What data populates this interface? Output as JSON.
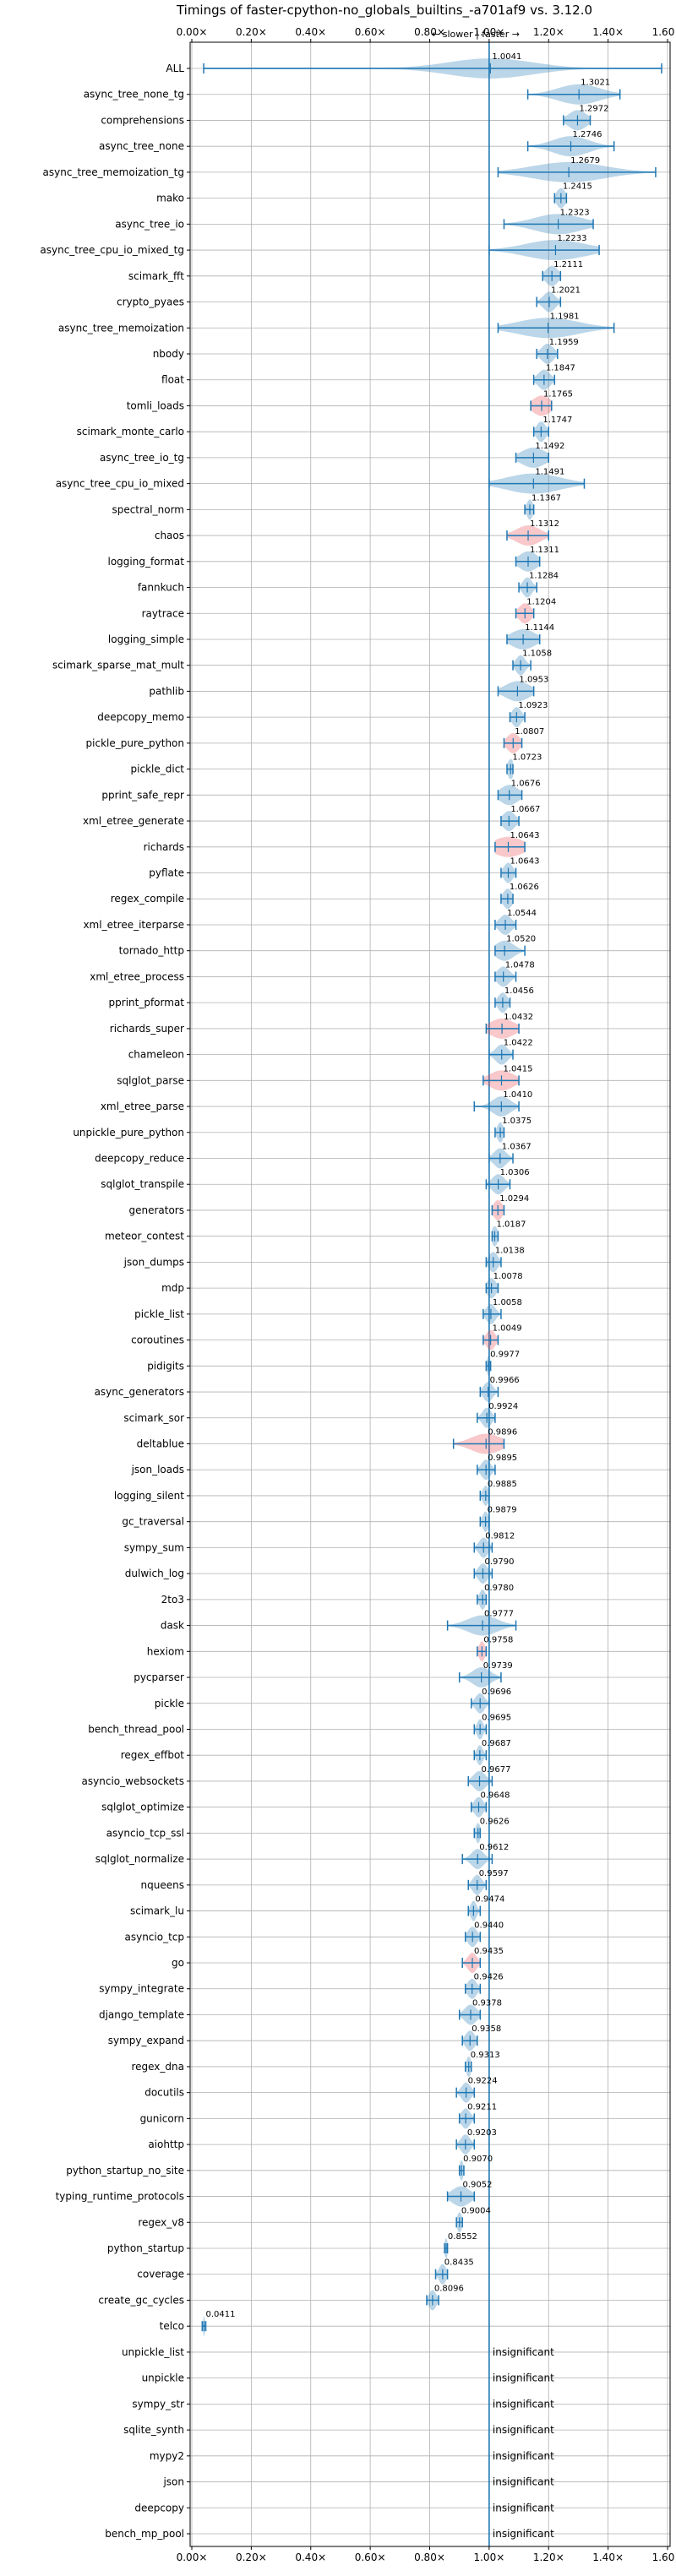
{
  "chart_data": {
    "type": "violin",
    "title": "Timings of faster-cpython-no_globals_builtins_-a701af9 vs. 3.12.0",
    "subtitle": "← slower | faster →",
    "xlim": [
      0,
      1.6
    ],
    "x_ticks": [
      "0.00×",
      "0.20×",
      "0.40×",
      "0.60×",
      "0.80×",
      "1.00×",
      "1.20×",
      "1.40×",
      "1.60×"
    ],
    "x_tick_values": [
      0,
      0.2,
      0.4,
      0.6,
      0.8,
      1.0,
      1.2,
      1.4,
      1.6
    ],
    "grid": true,
    "reference_line": 1.0,
    "insignificant_label": "insignificant",
    "colors": {
      "normal": "#1f77b4",
      "highlight": "#e8494f"
    },
    "benchmarks": [
      {
        "name": "ALL",
        "value": 1.0041,
        "label": "1.0041",
        "min": 0.04,
        "max": 1.58,
        "spread": 0.14
      },
      {
        "name": "async_tree_none_tg",
        "value": 1.3021,
        "label": "1.3021",
        "min": 1.13,
        "max": 1.44,
        "spread": 0.07
      },
      {
        "name": "comprehensions",
        "value": 1.2972,
        "label": "1.2972",
        "min": 1.25,
        "max": 1.34,
        "spread": 0.03
      },
      {
        "name": "async_tree_none",
        "value": 1.2746,
        "label": "1.2746",
        "min": 1.13,
        "max": 1.42,
        "spread": 0.06
      },
      {
        "name": "async_tree_memoization_tg",
        "value": 1.2679,
        "label": "1.2679",
        "min": 1.03,
        "max": 1.56,
        "spread": 0.12
      },
      {
        "name": "mako",
        "value": 1.2415,
        "label": "1.2415",
        "min": 1.22,
        "max": 1.26,
        "spread": 0.015
      },
      {
        "name": "async_tree_io",
        "value": 1.2323,
        "label": "1.2323",
        "min": 1.05,
        "max": 1.35,
        "spread": 0.08
      },
      {
        "name": "async_tree_cpu_io_mixed_tg",
        "value": 1.2233,
        "label": "1.2233",
        "min": 1.0,
        "max": 1.37,
        "spread": 0.1
      },
      {
        "name": "scimark_fft",
        "value": 1.2111,
        "label": "1.2111",
        "min": 1.18,
        "max": 1.24,
        "spread": 0.02
      },
      {
        "name": "crypto_pyaes",
        "value": 1.2021,
        "label": "1.2021",
        "min": 1.16,
        "max": 1.24,
        "spread": 0.02
      },
      {
        "name": "async_tree_memoization",
        "value": 1.1981,
        "label": "1.1981",
        "min": 1.03,
        "max": 1.42,
        "spread": 0.1
      },
      {
        "name": "nbody",
        "value": 1.1959,
        "label": "1.1959",
        "min": 1.16,
        "max": 1.23,
        "spread": 0.02
      },
      {
        "name": "float",
        "value": 1.1847,
        "label": "1.1847",
        "min": 1.15,
        "max": 1.22,
        "spread": 0.02
      },
      {
        "name": "tomli_loads",
        "value": 1.1765,
        "label": "1.1765",
        "min": 1.14,
        "max": 1.21,
        "spread": 0.03,
        "highlight": true
      },
      {
        "name": "scimark_monte_carlo",
        "value": 1.1747,
        "label": "1.1747",
        "min": 1.15,
        "max": 1.2,
        "spread": 0.015
      },
      {
        "name": "async_tree_io_tg",
        "value": 1.1492,
        "label": "1.1492",
        "min": 1.09,
        "max": 1.2,
        "spread": 0.04
      },
      {
        "name": "async_tree_cpu_io_mixed",
        "value": 1.1491,
        "label": "1.1491",
        "min": 1.0,
        "max": 1.32,
        "spread": 0.09
      },
      {
        "name": "spectral_norm",
        "value": 1.1367,
        "label": "1.1367",
        "min": 1.12,
        "max": 1.15,
        "spread": 0.01
      },
      {
        "name": "chaos",
        "value": 1.1312,
        "label": "1.1312",
        "min": 1.06,
        "max": 1.2,
        "spread": 0.04,
        "highlight": true
      },
      {
        "name": "logging_format",
        "value": 1.1311,
        "label": "1.1311",
        "min": 1.09,
        "max": 1.17,
        "spread": 0.03
      },
      {
        "name": "fannkuch",
        "value": 1.1284,
        "label": "1.1284",
        "min": 1.1,
        "max": 1.16,
        "spread": 0.015
      },
      {
        "name": "raytrace",
        "value": 1.1204,
        "label": "1.1204",
        "min": 1.09,
        "max": 1.15,
        "spread": 0.02,
        "highlight": true
      },
      {
        "name": "logging_simple",
        "value": 1.1144,
        "label": "1.1144",
        "min": 1.06,
        "max": 1.17,
        "spread": 0.04
      },
      {
        "name": "scimark_sparse_mat_mult",
        "value": 1.1058,
        "label": "1.1058",
        "min": 1.08,
        "max": 1.14,
        "spread": 0.015
      },
      {
        "name": "pathlib",
        "value": 1.0953,
        "label": "1.0953",
        "min": 1.03,
        "max": 1.15,
        "spread": 0.04
      },
      {
        "name": "deepcopy_memo",
        "value": 1.0923,
        "label": "1.0923",
        "min": 1.07,
        "max": 1.12,
        "spread": 0.015
      },
      {
        "name": "pickle_pure_python",
        "value": 1.0807,
        "label": "1.0807",
        "min": 1.05,
        "max": 1.11,
        "spread": 0.02,
        "highlight": true
      },
      {
        "name": "pickle_dict",
        "value": 1.0723,
        "label": "1.0723",
        "min": 1.06,
        "max": 1.08,
        "spread": 0.01
      },
      {
        "name": "pprint_safe_repr",
        "value": 1.0676,
        "label": "1.0676",
        "min": 1.03,
        "max": 1.11,
        "spread": 0.03
      },
      {
        "name": "xml_etree_generate",
        "value": 1.0667,
        "label": "1.0667",
        "min": 1.04,
        "max": 1.1,
        "spread": 0.02
      },
      {
        "name": "richards",
        "value": 1.0643,
        "label": "1.0643",
        "min": 1.02,
        "max": 1.12,
        "spread": 0.05,
        "highlight": true
      },
      {
        "name": "pyflate",
        "value": 1.0643,
        "label": "1.0643",
        "min": 1.04,
        "max": 1.09,
        "spread": 0.015
      },
      {
        "name": "regex_compile",
        "value": 1.0626,
        "label": "1.0626",
        "min": 1.04,
        "max": 1.08,
        "spread": 0.015
      },
      {
        "name": "xml_etree_iterparse",
        "value": 1.0544,
        "label": "1.0544",
        "min": 1.02,
        "max": 1.09,
        "spread": 0.02
      },
      {
        "name": "tornado_http",
        "value": 1.052,
        "label": "1.0520",
        "min": 1.02,
        "max": 1.12,
        "spread": 0.03
      },
      {
        "name": "xml_etree_process",
        "value": 1.0478,
        "label": "1.0478",
        "min": 1.02,
        "max": 1.09,
        "spread": 0.02
      },
      {
        "name": "pprint_pformat",
        "value": 1.0456,
        "label": "1.0456",
        "min": 1.02,
        "max": 1.07,
        "spread": 0.015
      },
      {
        "name": "richards_super",
        "value": 1.0432,
        "label": "1.0432",
        "min": 0.99,
        "max": 1.1,
        "spread": 0.04,
        "highlight": true
      },
      {
        "name": "chameleon",
        "value": 1.0422,
        "label": "1.0422",
        "min": 1.0,
        "max": 1.08,
        "spread": 0.02
      },
      {
        "name": "sqlglot_parse",
        "value": 1.0415,
        "label": "1.0415",
        "min": 0.98,
        "max": 1.1,
        "spread": 0.04,
        "highlight": true
      },
      {
        "name": "xml_etree_parse",
        "value": 1.041,
        "label": "1.0410",
        "min": 0.95,
        "max": 1.1,
        "spread": 0.03
      },
      {
        "name": "unpickle_pure_python",
        "value": 1.0375,
        "label": "1.0375",
        "min": 1.02,
        "max": 1.05,
        "spread": 0.01
      },
      {
        "name": "deepcopy_reduce",
        "value": 1.0367,
        "label": "1.0367",
        "min": 1.0,
        "max": 1.08,
        "spread": 0.02
      },
      {
        "name": "sqlglot_transpile",
        "value": 1.0306,
        "label": "1.0306",
        "min": 0.99,
        "max": 1.07,
        "spread": 0.02
      },
      {
        "name": "generators",
        "value": 1.0294,
        "label": "1.0294",
        "min": 1.01,
        "max": 1.05,
        "spread": 0.015,
        "highlight": true
      },
      {
        "name": "meteor_contest",
        "value": 1.0187,
        "label": "1.0187",
        "min": 1.01,
        "max": 1.03,
        "spread": 0.01
      },
      {
        "name": "json_dumps",
        "value": 1.0138,
        "label": "1.0138",
        "min": 0.99,
        "max": 1.04,
        "spread": 0.015
      },
      {
        "name": "mdp",
        "value": 1.0078,
        "label": "1.0078",
        "min": 0.99,
        "max": 1.03,
        "spread": 0.015
      },
      {
        "name": "pickle_list",
        "value": 1.0058,
        "label": "1.0058",
        "min": 0.98,
        "max": 1.04,
        "spread": 0.015
      },
      {
        "name": "coroutines",
        "value": 1.0049,
        "label": "1.0049",
        "min": 0.98,
        "max": 1.03,
        "spread": 0.015,
        "highlight": true
      },
      {
        "name": "pidigits",
        "value": 0.9977,
        "label": "0.9977",
        "min": 0.99,
        "max": 1.005,
        "spread": 0.005
      },
      {
        "name": "async_generators",
        "value": 0.9966,
        "label": "0.9966",
        "min": 0.97,
        "max": 1.03,
        "spread": 0.015
      },
      {
        "name": "scimark_sor",
        "value": 0.9924,
        "label": "0.9924",
        "min": 0.96,
        "max": 1.02,
        "spread": 0.015
      },
      {
        "name": "deltablue",
        "value": 0.9896,
        "label": "0.9896",
        "min": 0.88,
        "max": 1.05,
        "spread": 0.05,
        "highlight": true
      },
      {
        "name": "json_loads",
        "value": 0.9895,
        "label": "0.9895",
        "min": 0.96,
        "max": 1.02,
        "spread": 0.015
      },
      {
        "name": "logging_silent",
        "value": 0.9885,
        "label": "0.9885",
        "min": 0.97,
        "max": 1.0,
        "spread": 0.01
      },
      {
        "name": "gc_traversal",
        "value": 0.9879,
        "label": "0.9879",
        "min": 0.97,
        "max": 1.0,
        "spread": 0.01
      },
      {
        "name": "sympy_sum",
        "value": 0.9812,
        "label": "0.9812",
        "min": 0.95,
        "max": 1.01,
        "spread": 0.015
      },
      {
        "name": "dulwich_log",
        "value": 0.979,
        "label": "0.9790",
        "min": 0.95,
        "max": 1.01,
        "spread": 0.015
      },
      {
        "name": "2to3",
        "value": 0.978,
        "label": "0.9780",
        "min": 0.96,
        "max": 0.99,
        "spread": 0.01
      },
      {
        "name": "dask",
        "value": 0.9777,
        "label": "0.9777",
        "min": 0.86,
        "max": 1.09,
        "spread": 0.05
      },
      {
        "name": "hexiom",
        "value": 0.9758,
        "label": "0.9758",
        "min": 0.96,
        "max": 0.99,
        "spread": 0.01,
        "highlight": true
      },
      {
        "name": "pycparser",
        "value": 0.9739,
        "label": "0.9739",
        "min": 0.9,
        "max": 1.04,
        "spread": 0.03
      },
      {
        "name": "pickle",
        "value": 0.9696,
        "label": "0.9696",
        "min": 0.94,
        "max": 1.0,
        "spread": 0.015
      },
      {
        "name": "bench_thread_pool",
        "value": 0.9695,
        "label": "0.9695",
        "min": 0.95,
        "max": 0.99,
        "spread": 0.01
      },
      {
        "name": "regex_effbot",
        "value": 0.9687,
        "label": "0.9687",
        "min": 0.95,
        "max": 0.99,
        "spread": 0.01
      },
      {
        "name": "asyncio_websockets",
        "value": 0.9677,
        "label": "0.9677",
        "min": 0.93,
        "max": 1.01,
        "spread": 0.02
      },
      {
        "name": "sqlglot_optimize",
        "value": 0.9648,
        "label": "0.9648",
        "min": 0.94,
        "max": 0.99,
        "spread": 0.015
      },
      {
        "name": "asyncio_tcp_ssl",
        "value": 0.9626,
        "label": "0.9626",
        "min": 0.95,
        "max": 0.97,
        "spread": 0.008
      },
      {
        "name": "sqlglot_normalize",
        "value": 0.9612,
        "label": "0.9612",
        "min": 0.91,
        "max": 1.01,
        "spread": 0.02
      },
      {
        "name": "nqueens",
        "value": 0.9597,
        "label": "0.9597",
        "min": 0.93,
        "max": 0.99,
        "spread": 0.015
      },
      {
        "name": "scimark_lu",
        "value": 0.9474,
        "label": "0.9474",
        "min": 0.93,
        "max": 0.97,
        "spread": 0.01
      },
      {
        "name": "asyncio_tcp",
        "value": 0.944,
        "label": "0.9440",
        "min": 0.92,
        "max": 0.97,
        "spread": 0.015
      },
      {
        "name": "go",
        "value": 0.9435,
        "label": "0.9435",
        "min": 0.91,
        "max": 0.97,
        "spread": 0.015,
        "highlight": true
      },
      {
        "name": "sympy_integrate",
        "value": 0.9426,
        "label": "0.9426",
        "min": 0.92,
        "max": 0.97,
        "spread": 0.015
      },
      {
        "name": "django_template",
        "value": 0.9378,
        "label": "0.9378",
        "min": 0.9,
        "max": 0.97,
        "spread": 0.02
      },
      {
        "name": "sympy_expand",
        "value": 0.9358,
        "label": "0.9358",
        "min": 0.91,
        "max": 0.96,
        "spread": 0.015
      },
      {
        "name": "regex_dna",
        "value": 0.9313,
        "label": "0.9313",
        "min": 0.92,
        "max": 0.94,
        "spread": 0.008
      },
      {
        "name": "docutils",
        "value": 0.9224,
        "label": "0.9224",
        "min": 0.89,
        "max": 0.95,
        "spread": 0.015
      },
      {
        "name": "gunicorn",
        "value": 0.9211,
        "label": "0.9211",
        "min": 0.9,
        "max": 0.95,
        "spread": 0.015
      },
      {
        "name": "aiohttp",
        "value": 0.9203,
        "label": "0.9203",
        "min": 0.89,
        "max": 0.95,
        "spread": 0.015
      },
      {
        "name": "python_startup_no_site",
        "value": 0.907,
        "label": "0.9070",
        "min": 0.9,
        "max": 0.915,
        "spread": 0.006
      },
      {
        "name": "typing_runtime_protocols",
        "value": 0.9052,
        "label": "0.9052",
        "min": 0.86,
        "max": 0.95,
        "spread": 0.03
      },
      {
        "name": "regex_v8",
        "value": 0.9004,
        "label": "0.9004",
        "min": 0.89,
        "max": 0.91,
        "spread": 0.008
      },
      {
        "name": "python_startup",
        "value": 0.8552,
        "label": "0.8552",
        "min": 0.85,
        "max": 0.86,
        "spread": 0.005
      },
      {
        "name": "coverage",
        "value": 0.8435,
        "label": "0.8435",
        "min": 0.82,
        "max": 0.86,
        "spread": 0.012
      },
      {
        "name": "create_gc_cycles",
        "value": 0.8096,
        "label": "0.8096",
        "min": 0.79,
        "max": 0.83,
        "spread": 0.012
      },
      {
        "name": "telco",
        "value": 0.0411,
        "label": "0.0411",
        "min": 0.035,
        "max": 0.047,
        "spread": 0.003
      },
      {
        "name": "unpickle_list",
        "value": null,
        "insignificant": true
      },
      {
        "name": "unpickle",
        "value": null,
        "insignificant": true
      },
      {
        "name": "sympy_str",
        "value": null,
        "insignificant": true
      },
      {
        "name": "sqlite_synth",
        "value": null,
        "insignificant": true
      },
      {
        "name": "mypy2",
        "value": null,
        "insignificant": true
      },
      {
        "name": "json",
        "value": null,
        "insignificant": true
      },
      {
        "name": "deepcopy",
        "value": null,
        "insignificant": true
      },
      {
        "name": "bench_mp_pool",
        "value": null,
        "insignificant": true
      }
    ]
  }
}
